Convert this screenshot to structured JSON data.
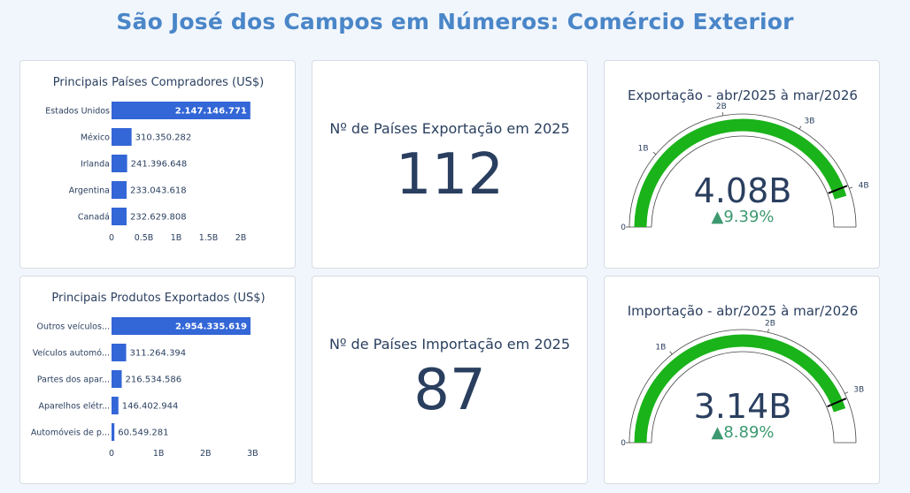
{
  "title": "São José dos Campos em Números: Comércio Exterior",
  "colors": {
    "bar": "#3366d6",
    "gauge": "#1ab31a",
    "delta": "#3d9970",
    "text": "#2a3f5f",
    "threshold": "#000000"
  },
  "chart_data": [
    {
      "type": "bar",
      "orientation": "horizontal",
      "title": "Principais Países Compradores (US$)",
      "categories": [
        "Estados Unidos",
        "México",
        "Irlanda",
        "Argentina",
        "Canadá"
      ],
      "values": [
        2147146771,
        310350282,
        241396648,
        233043618,
        232629808
      ],
      "value_labels": [
        "2.147.146.771",
        "310.350.282",
        "241.396.648",
        "233.043.618",
        "232.629.808"
      ],
      "xlim": [
        0,
        2150000000
      ],
      "xticks": [
        0,
        500000000,
        1000000000,
        1500000000,
        2000000000
      ],
      "xtick_labels": [
        "0",
        "0.5B",
        "1B",
        "1.5B",
        "2B"
      ]
    },
    {
      "type": "bar",
      "orientation": "horizontal",
      "title": "Principais Produtos Exportados (US$)",
      "categories": [
        "Outros veículos...",
        "Veículos automó...",
        "Partes dos apar...",
        "Aparelhos elétr...",
        "Automóveis de p..."
      ],
      "values": [
        2954335619,
        311264394,
        216534586,
        146402944,
        60549281
      ],
      "value_labels": [
        "2.954.335.619",
        "311.264.394",
        "216.534.586",
        "146.402.944",
        "60.549.281"
      ],
      "xlim": [
        0,
        2955000000
      ],
      "xticks": [
        0,
        1000000000,
        2000000000,
        3000000000
      ],
      "xtick_labels": [
        "0",
        "1B",
        "2B",
        "3B"
      ]
    },
    {
      "type": "gauge",
      "title": "Exportação - abr/2025 à mar/2026",
      "value": 4080000000,
      "value_label": "4.08B",
      "delta_label": "▲9.39%",
      "range": [
        0,
        4500000000
      ],
      "threshold": 3960000000,
      "ticks": [
        0,
        1000000000,
        2000000000,
        3000000000,
        4000000000
      ],
      "tick_labels": [
        "0",
        "1B",
        "2B",
        "3B",
        "4B"
      ]
    },
    {
      "type": "gauge",
      "title": "Importação - abr/2025 à mar/2026",
      "value": 3140000000,
      "value_label": "3.14B",
      "delta_label": "▲8.89%",
      "range": [
        0,
        3500000000
      ],
      "threshold": 3050000000,
      "ticks": [
        0,
        1000000000,
        2000000000,
        3000000000
      ],
      "tick_labels": [
        "0",
        "1B",
        "2B",
        "3B"
      ]
    }
  ],
  "kpis": [
    {
      "label": "Nº de Países Exportação em 2025",
      "value": "112"
    },
    {
      "label": "Nº de Países Importação em 2025",
      "value": "87"
    }
  ]
}
